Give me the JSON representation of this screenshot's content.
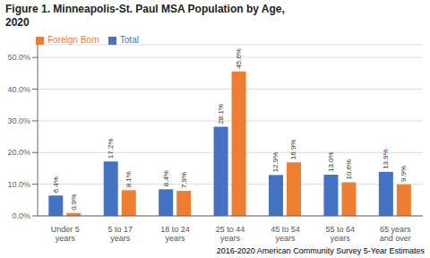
{
  "chart_data": {
    "type": "bar",
    "title": "Figure 1. Minneapolis-St. Paul MSA Population by Age,\n2020",
    "annotations": [
      "2016-2020 American Community Survey 5-Year Estimates"
    ],
    "categories": [
      "Under 5\nyears",
      "5 to 17\nyears",
      "18 to 24\nyears",
      "25 to 44\nyears",
      "45 to 54\nyears",
      "55 to 64\nyears",
      "65 years\nand over"
    ],
    "series": [
      {
        "name": "Total",
        "color": "#4472C4",
        "values": [
          6.4,
          17.2,
          8.4,
          28.1,
          12.9,
          13.0,
          13.9
        ],
        "value_labels": [
          "6.4%",
          "17.2%",
          "8.4%",
          "28.1%",
          "12.9%",
          "13.0%",
          "13.9%"
        ]
      },
      {
        "name": "Foreign Born",
        "color": "#ED7D31",
        "values": [
          0.9,
          8.1,
          7.9,
          45.6,
          16.9,
          10.6,
          9.9
        ],
        "value_labels": [
          "0.9%",
          "8.1%",
          "7.9%",
          "45.6%",
          "16.9%",
          "10.6%",
          "9.9%"
        ]
      }
    ],
    "ylim": [
      0,
      54
    ],
    "yticks": [
      {
        "value": 0,
        "label": "0.0%"
      },
      {
        "value": 10,
        "label": "10.0%"
      },
      {
        "value": 20,
        "label": "20.0%"
      },
      {
        "value": 30,
        "label": "30.0%"
      },
      {
        "value": 40,
        "label": "40.0%"
      },
      {
        "value": 50,
        "label": "50.0%"
      }
    ],
    "grid": true,
    "legend": "upper left",
    "data_labels": true
  }
}
